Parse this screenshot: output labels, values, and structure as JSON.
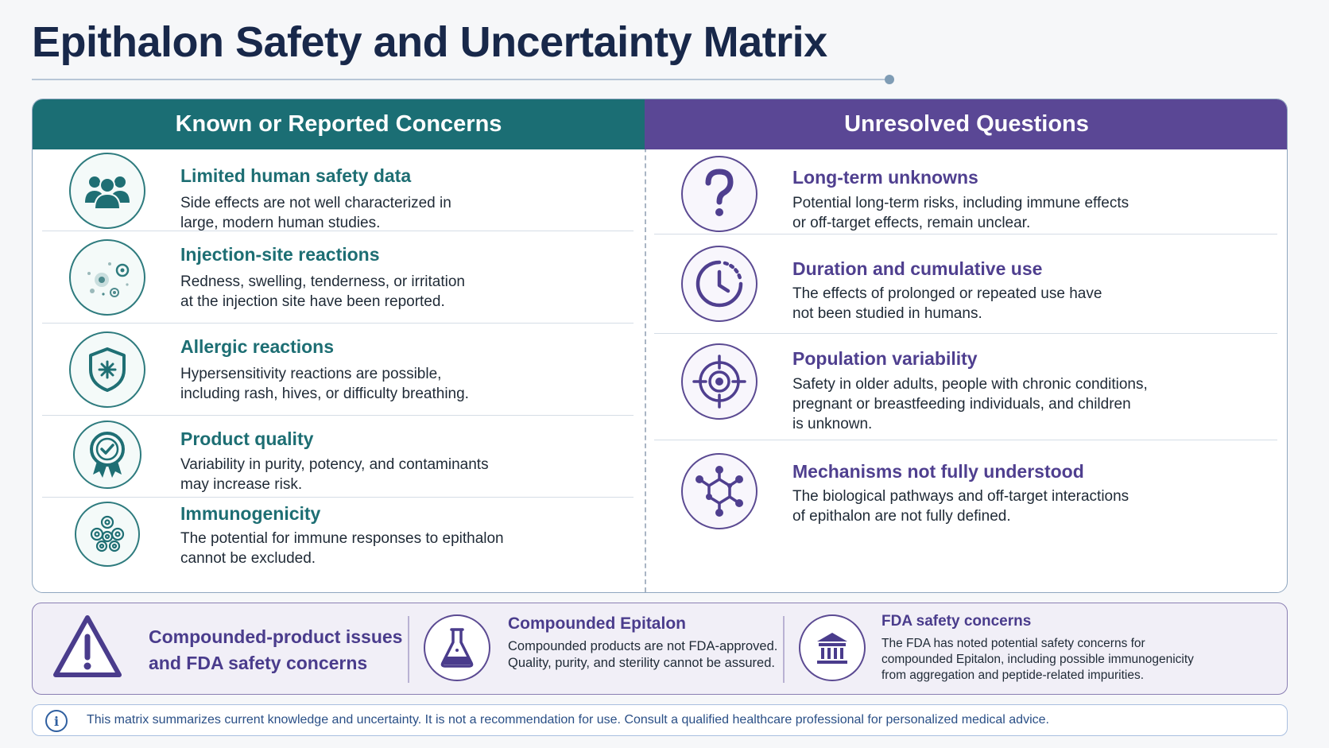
{
  "title": "Epithalon Safety and Uncertainty Matrix",
  "colors": {
    "left_header": "#1b6e74",
    "right_header": "#5a4795",
    "title": "#18284a"
  },
  "known": {
    "heading": "Known or Reported Concerns",
    "items": [
      {
        "icon": "people-group-icon",
        "title": "Limited human safety data",
        "line1": "Side effects are not well characterized in",
        "line2": "large, modern human studies."
      },
      {
        "icon": "injection-site-icon",
        "title": "Injection-site reactions",
        "line1": "Redness, swelling, tenderness, or irritation",
        "line2": "at the injection site have been reported."
      },
      {
        "icon": "shield-icon",
        "title": "Allergic reactions",
        "line1": "Hypersensitivity reactions are possible,",
        "line2": "including rash, hives, or difficulty breathing."
      },
      {
        "icon": "quality-badge-icon",
        "title": "Product quality",
        "line1": "Variability in purity, potency, and contaminants",
        "line2": "may increase risk."
      },
      {
        "icon": "cells-icon",
        "title": "Immunogenicity",
        "line1": "The potential for immune responses to epithalon",
        "line2": "cannot be excluded."
      }
    ]
  },
  "unresolved": {
    "heading": "Unresolved Questions",
    "items": [
      {
        "icon": "question-icon",
        "title": "Long-term unknowns",
        "line1": "Potential long-term risks, including immune effects",
        "line2": "or off-target effects, remain unclear.",
        "line3": ""
      },
      {
        "icon": "clock-icon",
        "title": "Duration and cumulative use",
        "line1": "The effects of prolonged or repeated use have",
        "line2": "not been studied in humans.",
        "line3": ""
      },
      {
        "icon": "target-icon",
        "title": "Population variability",
        "line1": "Safety in older adults, people with chronic conditions,",
        "line2": "pregnant or breastfeeding individuals, and children",
        "line3": "is unknown."
      },
      {
        "icon": "molecule-icon",
        "title": "Mechanisms not fully understood",
        "line1": "The biological pathways and off-target interactions",
        "line2": "of epithalon are not fully defined.",
        "line3": ""
      }
    ]
  },
  "bottom": {
    "heading_line1": "Compounded-product issues",
    "heading_line2": "and FDA safety concerns",
    "compounded": {
      "title": "Compounded Epitalon",
      "line1": "Compounded products are not FDA-approved.",
      "line2": "Quality, purity, and sterility cannot be assured."
    },
    "fda": {
      "title": "FDA safety concerns",
      "line1": "The FDA has noted potential safety concerns for",
      "line2": "compounded Epitalon, including possible immunogenicity",
      "line3": "from aggregation and peptide-related impurities."
    }
  },
  "disclaimer": "This matrix summarizes current knowledge and uncertainty. It is not a recommendation for use. Consult a qualified healthcare professional for personalized medical advice."
}
